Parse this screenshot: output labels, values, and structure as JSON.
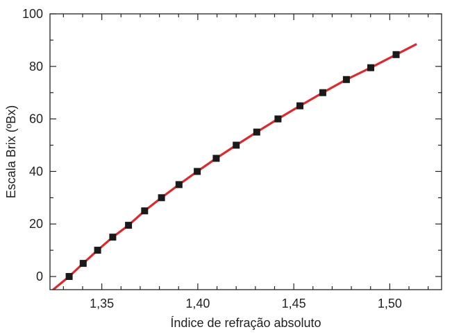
{
  "chart_data": {
    "type": "scatter",
    "title": "",
    "xlabel": "Índice de refração absoluto",
    "ylabel": "Escala Brix (ºBx)",
    "xlim": [
      1.323,
      1.527
    ],
    "ylim": [
      -5,
      100
    ],
    "x_ticks": [
      1.35,
      1.4,
      1.45,
      1.5
    ],
    "x_tick_labels": [
      "1,35",
      "1,40",
      "1,45",
      "1,50"
    ],
    "y_ticks": [
      0,
      20,
      40,
      60,
      80,
      100
    ],
    "y_tick_labels": [
      "0",
      "20",
      "40",
      "60",
      "80",
      "100"
    ],
    "grid": false,
    "colors": {
      "line": "#e3262b",
      "marker": "#1a1a1a"
    },
    "series": [
      {
        "type": "scatter",
        "x": [
          1.333,
          1.3403,
          1.3478,
          1.3557,
          1.3639,
          1.3723,
          1.3811,
          1.3902,
          1.3997,
          1.4096,
          1.42,
          1.4307,
          1.4418,
          1.4532,
          1.4651,
          1.4774,
          1.4901,
          1.5033
        ],
        "y": [
          0,
          5,
          10,
          15,
          19.5,
          25,
          30,
          35,
          40,
          45,
          50,
          55,
          60,
          65,
          70,
          75,
          79.5,
          84.5
        ]
      },
      {
        "type": "line",
        "x": [
          1.323,
          1.333,
          1.3403,
          1.3478,
          1.3557,
          1.3639,
          1.3723,
          1.3811,
          1.3902,
          1.3997,
          1.4096,
          1.42,
          1.4307,
          1.4418,
          1.4532,
          1.4651,
          1.4774,
          1.4901,
          1.5033,
          1.514
        ],
        "y": [
          -6,
          0,
          5,
          10,
          15,
          19.5,
          25,
          30,
          35,
          40,
          45,
          50,
          55,
          60,
          65,
          70,
          75,
          79.5,
          84.5,
          88.5
        ]
      }
    ]
  }
}
